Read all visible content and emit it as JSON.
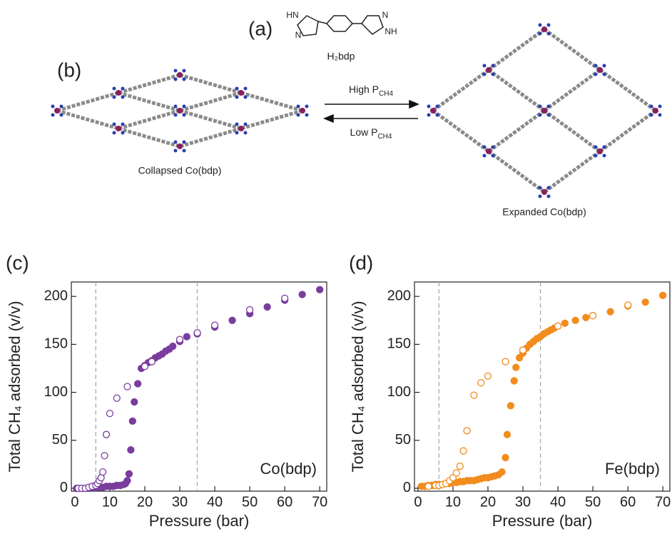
{
  "figure": {
    "panel_a": "(a)",
    "molecule_name": "H₂bdp",
    "molecule_labels": [
      "HN",
      "N",
      "N",
      "NH"
    ],
    "panel_b": "(b)",
    "arrow_top": {
      "text": "High P",
      "subscript": "CH4"
    },
    "arrow_bottom": {
      "text": "Low P",
      "subscript": "CH4"
    },
    "collapsed_label": "Collapsed Co(bdp)",
    "expanded_label": "Expanded Co(bdp)"
  },
  "chart_data": [
    {
      "type": "scatter",
      "panel": "(c)",
      "ylabel": "Total CH₄ adsorbed (v/v)",
      "xlabel": "Pressure (bar)",
      "annotation": "Co(bdp)",
      "color": "#7a3d9e",
      "xlim": [
        -1,
        72
      ],
      "ylim": [
        -3,
        215
      ],
      "xticks": [
        0,
        10,
        20,
        30,
        40,
        50,
        60,
        70
      ],
      "yticks": [
        0,
        50,
        100,
        150,
        200
      ],
      "vlines": [
        6,
        35
      ],
      "series": [
        {
          "marker": "filled",
          "color": "#7a3d9e",
          "x": [
            0.5,
            1,
            2,
            3,
            4,
            5,
            6,
            7,
            8,
            9,
            10,
            11,
            12,
            13,
            14,
            14.5,
            15,
            15.5,
            16,
            16.5,
            17,
            18,
            19,
            20,
            21,
            22,
            23,
            24,
            25,
            26,
            27,
            28,
            30,
            32,
            35,
            40,
            45,
            50,
            55,
            60,
            65,
            70
          ],
          "values": [
            0,
            0,
            0,
            0,
            0,
            1,
            1,
            1,
            1,
            2,
            2,
            2,
            3,
            3,
            4,
            5,
            8,
            15,
            40,
            70,
            90,
            109,
            125,
            128,
            131,
            133,
            136,
            138,
            140,
            143,
            145,
            148,
            153,
            158,
            161,
            168,
            175,
            182,
            189,
            196,
            202,
            207
          ]
        },
        {
          "marker": "open",
          "color": "#7a3d9e",
          "x": [
            1,
            2,
            3,
            4,
            5,
            6,
            6.5,
            7,
            7.5,
            8,
            8.5,
            9,
            10,
            12,
            15,
            20,
            22,
            30,
            35,
            40,
            50,
            60
          ],
          "values": [
            0,
            0,
            0,
            1,
            2,
            3,
            5,
            8,
            11,
            17,
            34,
            56,
            78,
            94,
            106,
            127,
            132,
            155,
            162,
            170,
            186,
            198
          ]
        }
      ]
    },
    {
      "type": "scatter",
      "panel": "(d)",
      "ylabel": "Total CH₄ adsorbed (v/v)",
      "xlabel": "Pressure (bar)",
      "annotation": "Fe(bdp)",
      "color": "#f28c1e",
      "xlim": [
        -1,
        72
      ],
      "ylim": [
        -3,
        215
      ],
      "xticks": [
        0,
        10,
        20,
        30,
        40,
        50,
        60,
        70
      ],
      "yticks": [
        0,
        50,
        100,
        150,
        200
      ],
      "vlines": [
        6,
        35
      ],
      "series": [
        {
          "marker": "filled",
          "color": "#f28c1e",
          "x": [
            1,
            2,
            3,
            4,
            5,
            6,
            7,
            8,
            9,
            10,
            11,
            12,
            13,
            14,
            15,
            16,
            17,
            18,
            19,
            20,
            21,
            22,
            23,
            24,
            25,
            25.5,
            26.5,
            27.5,
            28,
            29,
            30,
            31,
            32,
            33,
            34,
            35,
            36,
            37,
            38,
            39,
            40,
            42,
            45,
            48,
            50,
            55,
            60,
            65,
            70
          ],
          "values": [
            2,
            2,
            3,
            3,
            4,
            4,
            4,
            5,
            5,
            6,
            6,
            7,
            7,
            8,
            8,
            8,
            9,
            10,
            11,
            11,
            12,
            13,
            14,
            17,
            32,
            56,
            86,
            112,
            126,
            136,
            141,
            146,
            150,
            153,
            156,
            158,
            161,
            163,
            165,
            167,
            169,
            172,
            175,
            178,
            180,
            184,
            190,
            194,
            201
          ]
        },
        {
          "marker": "open",
          "color": "#f28c1e",
          "x": [
            3,
            5,
            6,
            7,
            8,
            9,
            10,
            11,
            12,
            13,
            14,
            16,
            18,
            20,
            25,
            30,
            40,
            50,
            60
          ],
          "values": [
            2,
            3,
            3,
            4,
            5,
            8,
            11,
            16,
            23,
            39,
            60,
            97,
            110,
            117,
            132,
            144,
            169,
            180,
            191
          ]
        }
      ]
    }
  ]
}
